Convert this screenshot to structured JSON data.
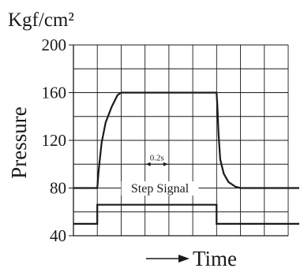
{
  "chart_data": {
    "type": "line",
    "title": "",
    "unit_label": "Kgf/cm²",
    "ylabel": "Pressure",
    "xlabel": "Time",
    "ylim": [
      40,
      200
    ],
    "y_ticks": [
      40,
      80,
      120,
      160,
      200
    ],
    "y_tick_labels": [
      "40",
      "80",
      "120",
      "160",
      "200"
    ],
    "x_divisions": 9,
    "grid": true,
    "x_units": "grid divisions (1 division = 0.1 s)",
    "series": [
      {
        "name": "",
        "x": [
          0.0,
          1.0,
          1.06,
          1.18,
          1.35,
          1.6,
          1.85,
          2.0,
          6.0,
          6.03,
          6.08,
          6.15,
          6.3,
          6.5,
          6.8,
          7.0,
          8.5
        ],
        "values": [
          80,
          80,
          95,
          118,
          135,
          148,
          158,
          160,
          160,
          150,
          125,
          104,
          92,
          85,
          81,
          80,
          80
        ]
      }
    ],
    "step_signal": {
      "label": "Step Signal",
      "x": [
        0.0,
        1.0,
        1.0,
        6.0,
        6.0,
        8.5
      ],
      "values": [
        50,
        50,
        66,
        66,
        50,
        50
      ]
    },
    "annotations": [
      {
        "text": "0.2s",
        "x_range": [
          3.0,
          4.0
        ],
        "y": 100
      }
    ]
  }
}
